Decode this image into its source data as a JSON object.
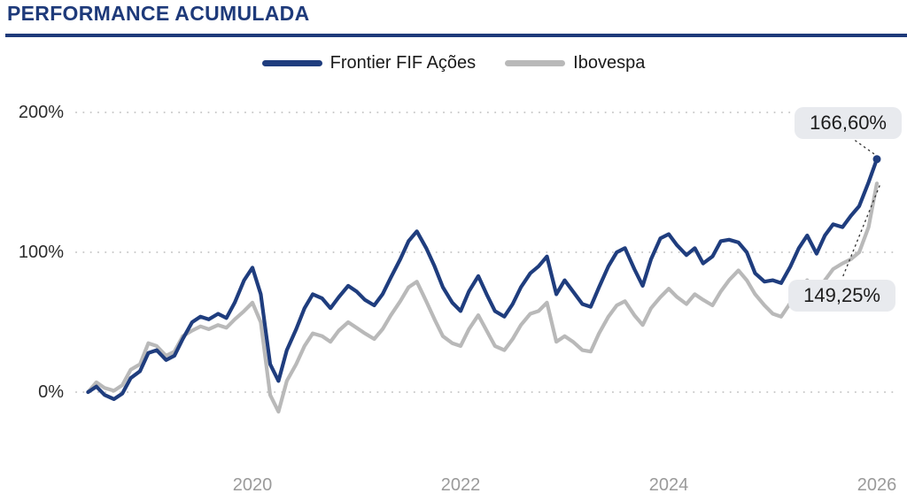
{
  "header": {
    "title": "PERFORMANCE ACUMULADA"
  },
  "annotations": {
    "fund_value": "166,60%",
    "bench_value": "149,25%"
  },
  "colors": {
    "accent_navy": "#1e3a7a",
    "line_frontier": "#1f3d7e",
    "line_ibovespa": "#b9b9b9",
    "gridline": "#c9c9c9",
    "badge_bg": "#e8eaee",
    "x_label_gray": "#9a9a9a"
  },
  "chart_data": {
    "type": "line",
    "title": "PERFORMANCE ACUMULADA",
    "xlabel": "",
    "ylabel": "",
    "x_range": [
      2018.42,
      2026.0
    ],
    "ylim": [
      -20,
      220
    ],
    "grid": "dotted-horizontal",
    "legend_position": "top-center",
    "x_tick_labels": [
      "2020",
      "2022",
      "2024",
      "2026"
    ],
    "y_ticks": [
      {
        "label": "0%",
        "value": 0
      },
      {
        "label": "100%",
        "value": 100
      },
      {
        "label": "200%",
        "value": 200
      }
    ],
    "x": [
      2018.42,
      2018.5,
      2018.58,
      2018.67,
      2018.75,
      2018.83,
      2018.92,
      2019.0,
      2019.08,
      2019.17,
      2019.25,
      2019.33,
      2019.42,
      2019.5,
      2019.58,
      2019.67,
      2019.75,
      2019.83,
      2019.92,
      2020.0,
      2020.08,
      2020.17,
      2020.25,
      2020.33,
      2020.42,
      2020.5,
      2020.58,
      2020.67,
      2020.75,
      2020.83,
      2020.92,
      2021.0,
      2021.08,
      2021.17,
      2021.25,
      2021.33,
      2021.42,
      2021.5,
      2021.58,
      2021.67,
      2021.75,
      2021.83,
      2021.92,
      2022.0,
      2022.08,
      2022.17,
      2022.25,
      2022.33,
      2022.42,
      2022.5,
      2022.58,
      2022.67,
      2022.75,
      2022.83,
      2022.92,
      2023.0,
      2023.08,
      2023.17,
      2023.25,
      2023.33,
      2023.42,
      2023.5,
      2023.58,
      2023.67,
      2023.75,
      2023.83,
      2023.92,
      2024.0,
      2024.08,
      2024.17,
      2024.25,
      2024.33,
      2024.42,
      2024.5,
      2024.58,
      2024.67,
      2024.75,
      2024.83,
      2024.92,
      2025.0,
      2025.08,
      2025.17,
      2025.25,
      2025.33,
      2025.42,
      2025.5,
      2025.58,
      2025.67,
      2025.75,
      2025.83,
      2025.92,
      2026.0
    ],
    "series": [
      {
        "name": "Frontier FIF Ações",
        "color": "#1f3d7e",
        "final_value_label": "166,60%",
        "values": [
          0,
          4,
          -2,
          -5,
          -1,
          10,
          15,
          28,
          30,
          23,
          26,
          38,
          50,
          54,
          52,
          56,
          53,
          64,
          80,
          89,
          70,
          20,
          8,
          30,
          45,
          60,
          70,
          67,
          60,
          68,
          76,
          72,
          66,
          62,
          70,
          82,
          95,
          108,
          115,
          103,
          90,
          75,
          64,
          58,
          72,
          83,
          70,
          58,
          54,
          63,
          75,
          85,
          90,
          97,
          70,
          80,
          72,
          63,
          61,
          75,
          90,
          100,
          103,
          88,
          76,
          95,
          110,
          113,
          105,
          98,
          103,
          92,
          97,
          108,
          109,
          107,
          100,
          85,
          79,
          80,
          78,
          90,
          103,
          112,
          99,
          112,
          120,
          118,
          126,
          133,
          150,
          166.6
        ]
      },
      {
        "name": "Ibovespa",
        "color": "#b9b9b9",
        "final_value_label": "149,25%",
        "values": [
          0,
          7,
          3,
          1,
          5,
          16,
          20,
          35,
          33,
          26,
          29,
          40,
          44,
          47,
          45,
          48,
          46,
          52,
          58,
          64,
          50,
          -2,
          -14,
          8,
          20,
          33,
          42,
          40,
          36,
          44,
          50,
          46,
          42,
          38,
          45,
          55,
          65,
          75,
          79,
          65,
          52,
          40,
          35,
          33,
          45,
          55,
          44,
          33,
          30,
          38,
          48,
          56,
          58,
          64,
          36,
          40,
          36,
          30,
          29,
          42,
          54,
          62,
          65,
          55,
          48,
          60,
          68,
          74,
          68,
          63,
          70,
          66,
          62,
          72,
          80,
          87,
          80,
          70,
          62,
          56,
          54,
          64,
          74,
          80,
          70,
          80,
          88,
          92,
          95,
          100,
          118,
          149.25
        ]
      }
    ]
  }
}
